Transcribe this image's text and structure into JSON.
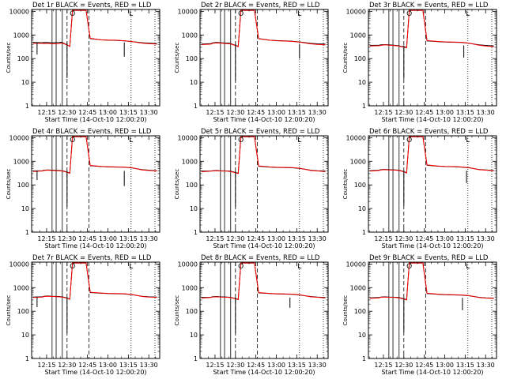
{
  "colors": {
    "events": "#000000",
    "lld": "#ff0000",
    "frame": "#000000",
    "background": "#ffffff"
  },
  "common": {
    "ylabel": "Counts/sec",
    "xlabel": "Start Time (14-Oct-10 12:00:20)",
    "xticks": [
      "12:15",
      "12:30",
      "12:45",
      "13:00",
      "13:15",
      "13:30"
    ],
    "yticks": [
      "1",
      "10",
      "100",
      "1000",
      "10000"
    ],
    "marker_left": "O",
    "marker_right": "L"
  },
  "chart_data": [
    {
      "type": "line",
      "title": "Det 1r  BLACK = Events, RED = LLD",
      "xlim": [
        "12:04",
        "13:38"
      ],
      "ylim": [
        1,
        12000
      ],
      "yscale": "log",
      "grid": false,
      "legend": "in title",
      "x": [
        "12:05",
        "12:12",
        "12:13",
        "12:16",
        "12:19",
        "12:24",
        "12:26",
        "12:28",
        "12:32",
        "12:34",
        "12:44",
        "12:47",
        "12:55",
        "13:00",
        "13:06",
        "13:12",
        "13:18",
        "13:25",
        "13:30",
        "13:36"
      ],
      "series": [
        {
          "name": "Events",
          "color": "#000000",
          "values": [
            480,
            470,
            480,
            475,
            470,
            480,
            490,
            430,
            330,
            11000,
            11000,
            700,
            620,
            600,
            590,
            560,
            520,
            470,
            450,
            430
          ]
        },
        {
          "name": "LLD",
          "color": "#ff0000",
          "values": [
            440,
            440,
            430,
            440,
            420,
            430,
            450,
            420,
            330,
            11000,
            11000,
            720,
            620,
            610,
            600,
            570,
            520,
            450,
            430,
            410
          ]
        }
      ],
      "dips": [
        {
          "x": "12:08",
          "to": 150
        },
        {
          "x": "12:30",
          "to": 15
        },
        {
          "x": "13:12",
          "to": 120
        }
      ]
    },
    {
      "type": "line",
      "title": "Det 2r  BLACK = Events, RED = LLD",
      "xlim": [
        "12:04",
        "13:38"
      ],
      "ylim": [
        1,
        12000
      ],
      "yscale": "log",
      "grid": false,
      "legend": "in title",
      "x": [
        "12:05",
        "12:12",
        "12:13",
        "12:16",
        "12:19",
        "12:24",
        "12:26",
        "12:28",
        "12:32",
        "12:34",
        "12:44",
        "12:47",
        "12:55",
        "13:00",
        "13:06",
        "13:12",
        "13:18",
        "13:25",
        "13:30",
        "13:36"
      ],
      "series": [
        {
          "name": "Events",
          "color": "#000000",
          "values": [
            410,
            430,
            460,
            480,
            470,
            450,
            440,
            400,
            330,
            11000,
            11000,
            700,
            600,
            580,
            560,
            540,
            500,
            440,
            420,
            410
          ]
        },
        {
          "name": "LLD",
          "color": "#ff0000",
          "values": [
            390,
            410,
            440,
            460,
            450,
            430,
            420,
            390,
            320,
            11000,
            11000,
            690,
            600,
            570,
            550,
            530,
            490,
            420,
            400,
            380
          ]
        }
      ],
      "dips": [
        {
          "x": "12:30",
          "to": 12
        },
        {
          "x": "13:17",
          "to": 100
        }
      ]
    },
    {
      "type": "line",
      "title": "Det 3r  BLACK = Events, RED = LLD",
      "xlim": [
        "12:04",
        "13:38"
      ],
      "ylim": [
        1,
        12000
      ],
      "yscale": "log",
      "grid": false,
      "legend": "in title",
      "x": [
        "12:05",
        "12:12",
        "12:13",
        "12:16",
        "12:19",
        "12:24",
        "12:26",
        "12:28",
        "12:32",
        "12:34",
        "12:44",
        "12:47",
        "12:55",
        "13:00",
        "13:06",
        "13:12",
        "13:18",
        "13:25",
        "13:30",
        "13:36"
      ],
      "series": [
        {
          "name": "Events",
          "color": "#000000",
          "values": [
            360,
            370,
            380,
            390,
            380,
            360,
            350,
            330,
            300,
            11000,
            11000,
            560,
            520,
            500,
            490,
            480,
            440,
            380,
            360,
            340
          ]
        },
        {
          "name": "LLD",
          "color": "#ff0000",
          "values": [
            340,
            350,
            360,
            380,
            370,
            350,
            340,
            320,
            290,
            11000,
            11000,
            580,
            530,
            510,
            500,
            490,
            450,
            370,
            340,
            320
          ]
        }
      ],
      "dips": [
        {
          "x": "12:30",
          "to": 14
        },
        {
          "x": "13:14",
          "to": 110
        }
      ]
    },
    {
      "type": "line",
      "title": "Det 4r  BLACK = Events, RED = LLD",
      "xlim": [
        "12:04",
        "13:38"
      ],
      "ylim": [
        1,
        12000
      ],
      "yscale": "log",
      "grid": false,
      "legend": "in title",
      "x": [
        "12:05",
        "12:12",
        "12:13",
        "12:16",
        "12:19",
        "12:24",
        "12:26",
        "12:28",
        "12:32",
        "12:34",
        "12:44",
        "12:47",
        "12:55",
        "13:00",
        "13:06",
        "13:12",
        "13:18",
        "13:25",
        "13:30",
        "13:36"
      ],
      "series": [
        {
          "name": "Events",
          "color": "#000000",
          "values": [
            390,
            400,
            420,
            430,
            420,
            410,
            400,
            380,
            320,
            11000,
            11000,
            650,
            600,
            580,
            570,
            560,
            520,
            440,
            420,
            400
          ]
        },
        {
          "name": "LLD",
          "color": "#ff0000",
          "values": [
            370,
            390,
            410,
            420,
            410,
            400,
            390,
            370,
            310,
            11000,
            11000,
            670,
            610,
            590,
            580,
            570,
            530,
            430,
            410,
            390
          ]
        }
      ],
      "dips": [
        {
          "x": "12:08",
          "to": 160
        },
        {
          "x": "12:30",
          "to": 12
        },
        {
          "x": "13:12",
          "to": 90
        }
      ]
    },
    {
      "type": "line",
      "title": "Det 5r  BLACK = Events, RED = LLD",
      "xlim": [
        "12:04",
        "13:38"
      ],
      "ylim": [
        1,
        12000
      ],
      "yscale": "log",
      "grid": false,
      "legend": "in title",
      "x": [
        "12:05",
        "12:12",
        "12:13",
        "12:16",
        "12:19",
        "12:24",
        "12:26",
        "12:28",
        "12:32",
        "12:34",
        "12:44",
        "12:47",
        "12:55",
        "13:00",
        "13:06",
        "13:12",
        "13:18",
        "13:25",
        "13:30",
        "13:36"
      ],
      "series": [
        {
          "name": "Events",
          "color": "#000000",
          "values": [
            380,
            390,
            400,
            410,
            400,
            390,
            380,
            360,
            310,
            11000,
            11000,
            620,
            570,
            550,
            540,
            530,
            490,
            420,
            400,
            390
          ]
        },
        {
          "name": "LLD",
          "color": "#ff0000",
          "values": [
            360,
            380,
            390,
            400,
            390,
            380,
            370,
            350,
            300,
            11000,
            11000,
            640,
            580,
            560,
            550,
            540,
            500,
            410,
            390,
            370
          ]
        }
      ],
      "dips": [
        {
          "x": "12:30",
          "to": 12
        }
      ]
    },
    {
      "type": "line",
      "title": "Det 6r  BLACK = Events, RED = LLD",
      "xlim": [
        "12:04",
        "13:38"
      ],
      "ylim": [
        1,
        12000
      ],
      "yscale": "log",
      "grid": false,
      "legend": "in title",
      "x": [
        "12:05",
        "12:12",
        "12:13",
        "12:16",
        "12:19",
        "12:24",
        "12:26",
        "12:28",
        "12:32",
        "12:34",
        "12:44",
        "12:47",
        "12:55",
        "13:00",
        "13:06",
        "13:12",
        "13:18",
        "13:25",
        "13:30",
        "13:36"
      ],
      "series": [
        {
          "name": "Events",
          "color": "#000000",
          "values": [
            400,
            420,
            440,
            450,
            440,
            430,
            420,
            400,
            330,
            11000,
            11000,
            680,
            620,
            600,
            590,
            570,
            530,
            450,
            430,
            410
          ]
        },
        {
          "name": "LLD",
          "color": "#ff0000",
          "values": [
            380,
            410,
            430,
            440,
            430,
            420,
            410,
            390,
            320,
            11000,
            11000,
            700,
            630,
            610,
            600,
            580,
            540,
            440,
            420,
            400
          ]
        }
      ],
      "dips": [
        {
          "x": "12:30",
          "to": 13
        },
        {
          "x": "13:16",
          "to": 120
        }
      ]
    },
    {
      "type": "line",
      "title": "Det 7r  BLACK = Events, RED = LLD",
      "xlim": [
        "12:04",
        "13:38"
      ],
      "ylim": [
        1,
        12000
      ],
      "yscale": "log",
      "grid": false,
      "legend": "in title",
      "x": [
        "12:05",
        "12:12",
        "12:13",
        "12:16",
        "12:19",
        "12:24",
        "12:26",
        "12:28",
        "12:32",
        "12:34",
        "12:44",
        "12:47",
        "12:55",
        "13:00",
        "13:06",
        "13:12",
        "13:18",
        "13:25",
        "13:30",
        "13:36"
      ],
      "series": [
        {
          "name": "Events",
          "color": "#000000",
          "values": [
            400,
            410,
            430,
            440,
            430,
            420,
            410,
            390,
            330,
            11000,
            11000,
            620,
            580,
            560,
            550,
            540,
            500,
            430,
            410,
            400
          ]
        },
        {
          "name": "LLD",
          "color": "#ff0000",
          "values": [
            380,
            400,
            420,
            430,
            420,
            410,
            400,
            380,
            320,
            11000,
            11000,
            640,
            590,
            570,
            560,
            550,
            510,
            420,
            400,
            390
          ]
        }
      ],
      "dips": [
        {
          "x": "12:08",
          "to": 150
        },
        {
          "x": "12:30",
          "to": 12
        }
      ]
    },
    {
      "type": "line",
      "title": "Det 8r  BLACK = Events, RED = LLD",
      "xlim": [
        "12:04",
        "13:38"
      ],
      "ylim": [
        1,
        12000
      ],
      "yscale": "log",
      "grid": false,
      "legend": "in title",
      "x": [
        "12:05",
        "12:12",
        "12:13",
        "12:16",
        "12:19",
        "12:24",
        "12:26",
        "12:28",
        "12:32",
        "12:34",
        "12:44",
        "12:47",
        "12:55",
        "13:00",
        "13:06",
        "13:12",
        "13:18",
        "13:25",
        "13:30",
        "13:36"
      ],
      "series": [
        {
          "name": "Events",
          "color": "#000000",
          "values": [
            380,
            390,
            410,
            420,
            410,
            400,
            390,
            370,
            320,
            11000,
            11000,
            600,
            560,
            540,
            530,
            520,
            480,
            420,
            400,
            380
          ]
        },
        {
          "name": "LLD",
          "color": "#ff0000",
          "values": [
            360,
            380,
            400,
            410,
            400,
            390,
            380,
            360,
            310,
            11000,
            11000,
            620,
            570,
            550,
            540,
            530,
            490,
            410,
            390,
            370
          ]
        }
      ],
      "dips": [
        {
          "x": "12:30",
          "to": 12
        },
        {
          "x": "13:10",
          "to": 140
        }
      ]
    },
    {
      "type": "line",
      "title": "Det 9r  BLACK = Events, RED = LLD",
      "xlim": [
        "12:04",
        "13:38"
      ],
      "ylim": [
        1,
        12000
      ],
      "yscale": "log",
      "grid": false,
      "legend": "in title",
      "x": [
        "12:05",
        "12:12",
        "12:13",
        "12:16",
        "12:19",
        "12:24",
        "12:26",
        "12:28",
        "12:32",
        "12:34",
        "12:44",
        "12:47",
        "12:55",
        "13:00",
        "13:06",
        "13:12",
        "13:18",
        "13:25",
        "13:30",
        "13:36"
      ],
      "series": [
        {
          "name": "Events",
          "color": "#000000",
          "values": [
            370,
            380,
            400,
            410,
            400,
            390,
            380,
            360,
            310,
            11000,
            11000,
            560,
            520,
            500,
            490,
            480,
            450,
            390,
            370,
            360
          ]
        },
        {
          "name": "LLD",
          "color": "#ff0000",
          "values": [
            350,
            370,
            390,
            400,
            390,
            380,
            370,
            350,
            300,
            11000,
            11000,
            580,
            530,
            510,
            500,
            490,
            460,
            380,
            360,
            350
          ]
        }
      ],
      "dips": [
        {
          "x": "12:30",
          "to": 13
        },
        {
          "x": "13:13",
          "to": 110
        }
      ]
    }
  ]
}
